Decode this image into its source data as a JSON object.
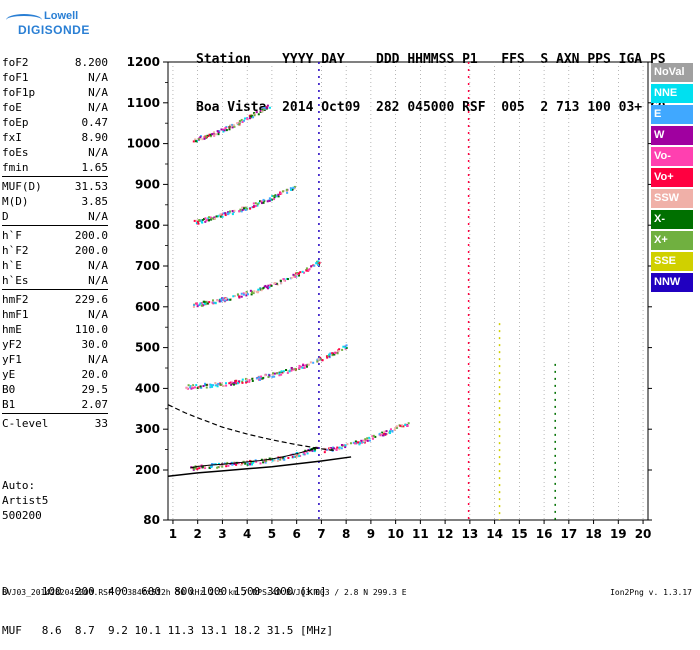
{
  "logo": {
    "line1": "Lowell",
    "line2": "DIGISONDE"
  },
  "header": {
    "line1": "Station    YYYY DAY    DDD HHMMSS P1   FFS  S AXN PPS IGA PS",
    "line2": "Boa Vista  2014 Oct09  282 045000 RSF  005  2 713 100 03+ C0"
  },
  "params": [
    {
      "group": [
        {
          "label": "foF2",
          "value": "8.200"
        },
        {
          "label": "foF1",
          "value": "N/A"
        },
        {
          "label": "foF1p",
          "value": "N/A"
        },
        {
          "label": "foE",
          "value": "N/A"
        },
        {
          "label": "foEp",
          "value": "0.47"
        },
        {
          "label": "fxI",
          "value": "8.90"
        },
        {
          "label": "foEs",
          "value": "N/A"
        },
        {
          "label": "fmin",
          "value": "1.65"
        }
      ]
    },
    {
      "group": [
        {
          "label": "MUF(D)",
          "value": "31.53"
        },
        {
          "label": "M(D)",
          "value": "3.85"
        },
        {
          "label": "D",
          "value": "N/A"
        }
      ]
    },
    {
      "group": [
        {
          "label": "h`F",
          "value": "200.0"
        },
        {
          "label": "h`F2",
          "value": "200.0"
        },
        {
          "label": "h`E",
          "value": "N/A"
        },
        {
          "label": "h`Es",
          "value": "N/A"
        }
      ]
    },
    {
      "group": [
        {
          "label": "hmF2",
          "value": "229.6"
        },
        {
          "label": "hmF1",
          "value": "N/A"
        },
        {
          "label": "hmE",
          "value": "110.0"
        },
        {
          "label": "yF2",
          "value": "30.0"
        },
        {
          "label": "yF1",
          "value": "N/A"
        },
        {
          "label": "yE",
          "value": "20.0"
        },
        {
          "label": "B0",
          "value": "29.5"
        },
        {
          "label": "B1",
          "value": "2.07"
        }
      ]
    },
    {
      "group": [
        {
          "label": "C-level",
          "value": "33"
        }
      ]
    }
  ],
  "auto": {
    "line1": "Auto:",
    "line2": "Artist5",
    "line3": "500200"
  },
  "bottom": {
    "d_line": "D     100  200  400  600  800 1000 1500 3000 [km]",
    "muf_line": "MUF   8.6  8.7  9.2 10.1 11.3 13.1 18.2 31.5 [MHz]"
  },
  "footer": "BVJ03_2014282045000.RSF / 384fx512h 50 kHz 2.5 km / DPS-4D BVJ03 003 / 2.8 N 299.3 E",
  "version": "Ion2Png v. 1.3.17",
  "legend": [
    {
      "label": "NoVal",
      "color": "#a0a0a0"
    },
    {
      "label": "NNE",
      "color": "#00e0f0"
    },
    {
      "label": "E",
      "color": "#40a8ff"
    },
    {
      "label": "W",
      "color": "#a000a0"
    },
    {
      "label": "Vo-",
      "color": "#ff40b0"
    },
    {
      "label": "Vo+",
      "color": "#ff0040"
    },
    {
      "label": "SSW",
      "color": "#f0b0a8"
    },
    {
      "label": "X-",
      "color": "#007000"
    },
    {
      "label": "X+",
      "color": "#70b040"
    },
    {
      "label": "SSE",
      "color": "#d0d000"
    },
    {
      "label": "NNW",
      "color": "#2000c0"
    }
  ],
  "chart_data": {
    "type": "scatter",
    "title": "",
    "xlabel": "",
    "ylabel": "",
    "xlim": [
      0.8,
      20.2
    ],
    "ylim": [
      80,
      1200
    ],
    "xticks": [
      1,
      2,
      3,
      4,
      5,
      6,
      7,
      8,
      9,
      10,
      11,
      12,
      13,
      14,
      15,
      16,
      17,
      18,
      19,
      20
    ],
    "yticks": [
      80,
      200,
      300,
      400,
      500,
      600,
      700,
      800,
      900,
      1000,
      1100,
      1200
    ],
    "grid": "vertical dashed",
    "traces": [
      {
        "name": "F2 trace",
        "x": [
          1.7,
          2.0,
          2.5,
          3.0,
          3.5,
          4.0,
          4.5,
          5.0,
          5.5,
          6.0,
          6.5,
          6.8
        ],
        "y": [
          205,
          209,
          212,
          214,
          217,
          220,
          223,
          227,
          233,
          240,
          248,
          255
        ]
      },
      {
        "name": "F2 oblique",
        "x": [
          7.0,
          7.5,
          8.0,
          8.5,
          9.0,
          9.5,
          10.0,
          10.5
        ],
        "y": [
          250,
          255,
          262,
          270,
          280,
          292,
          305,
          315
        ]
      },
      {
        "name": "2 hop",
        "x": [
          1.5,
          2.0,
          2.5,
          3.0,
          3.5,
          4.0,
          4.5,
          5.0,
          5.5,
          6.0,
          6.5,
          7.0,
          7.5,
          8.0
        ],
        "y": [
          405,
          408,
          410,
          413,
          417,
          422,
          428,
          435,
          443,
          452,
          462,
          475,
          490,
          505
        ]
      },
      {
        "name": "3 hop",
        "x": [
          1.8,
          2.2,
          2.6,
          3.0,
          3.5,
          4.0,
          4.5,
          5.0,
          5.5,
          6.0,
          6.5,
          6.9
        ],
        "y": [
          605,
          610,
          615,
          620,
          627,
          635,
          645,
          655,
          668,
          682,
          698,
          712
        ]
      },
      {
        "name": "4 hop",
        "x": [
          1.8,
          2.2,
          2.6,
          3.0,
          3.5,
          4.0,
          4.5,
          5.0,
          5.5,
          5.9
        ],
        "y": [
          808,
          814,
          820,
          827,
          836,
          846,
          858,
          870,
          884,
          897
        ]
      },
      {
        "name": "5 hop",
        "x": [
          1.8,
          2.2,
          2.6,
          3.0,
          3.4,
          3.8,
          4.2,
          4.6,
          4.9
        ],
        "y": [
          1010,
          1018,
          1026,
          1035,
          1046,
          1058,
          1071,
          1085,
          1096
        ]
      }
    ],
    "profile_solid": {
      "x": [
        0.8,
        2,
        3,
        4,
        5,
        6,
        7,
        8.2
      ],
      "y": [
        185,
        193,
        198,
        203,
        208,
        215,
        222,
        232
      ]
    },
    "profile_dashed": {
      "x": [
        0.8,
        1.5,
        2,
        3,
        4,
        5,
        6,
        7,
        7.5
      ],
      "y": [
        360,
        340,
        328,
        305,
        288,
        274,
        262,
        252,
        248
      ]
    },
    "vertical_lines": [
      {
        "x": 6.9,
        "y": [
          80,
          1200
        ],
        "color": "#2000c0"
      },
      {
        "x": 12.95,
        "y": [
          80,
          1200
        ],
        "color": "#ff0040"
      },
      {
        "x": 14.2,
        "y": [
          80,
          560
        ],
        "color": "#d0d000"
      },
      {
        "x": 16.45,
        "y": [
          80,
          460
        ],
        "color": "#007000"
      }
    ]
  }
}
